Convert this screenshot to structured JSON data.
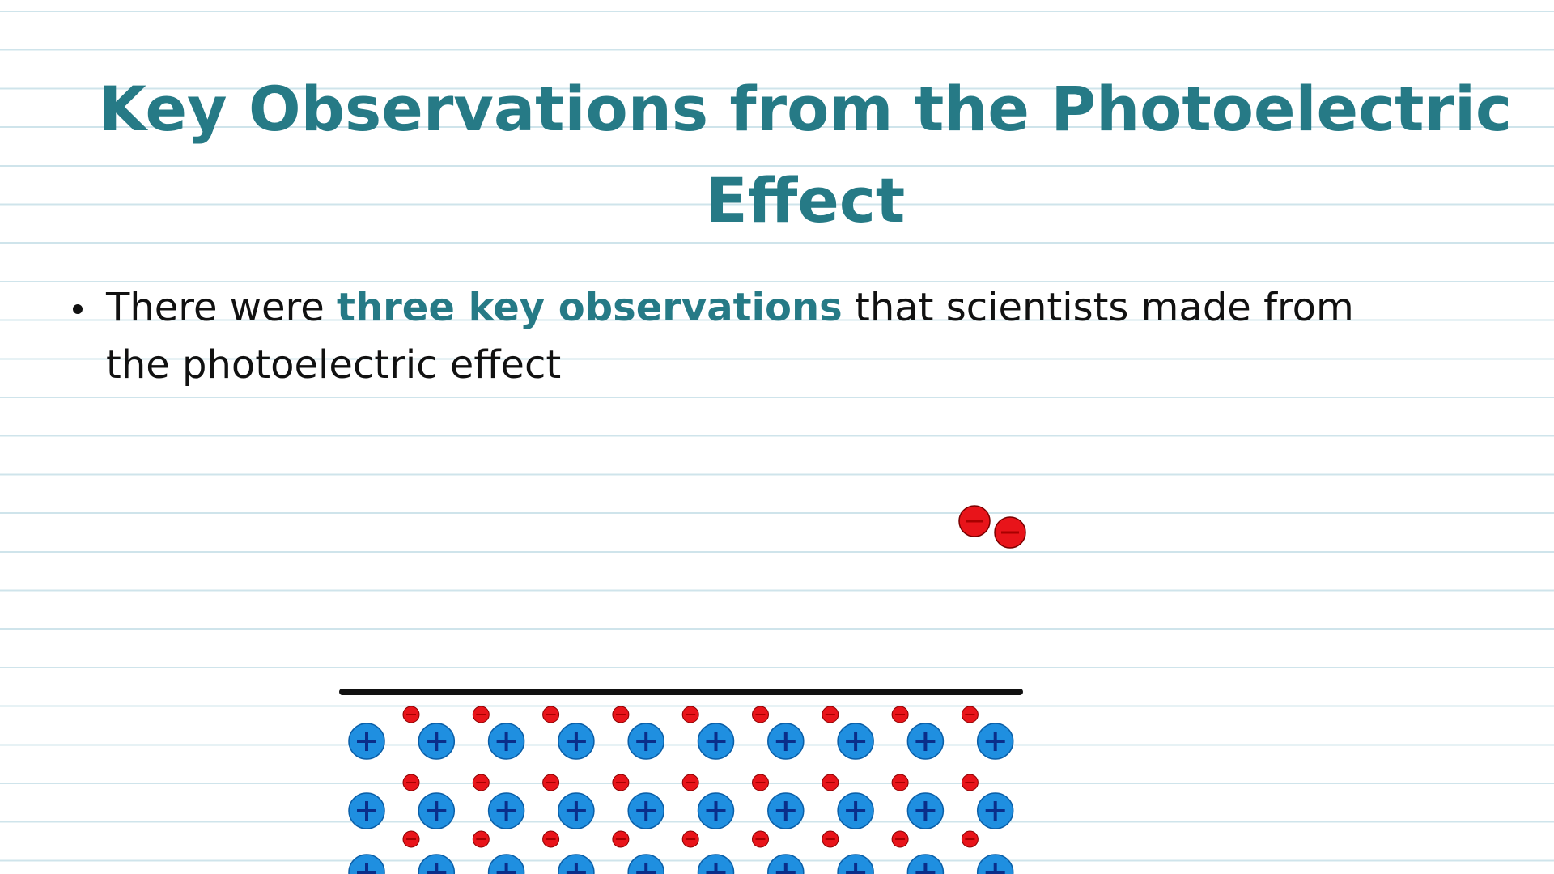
{
  "header": {
    "title": "Key Observations from the Photoelectric Effect"
  },
  "bullets": [
    {
      "before": "There were ",
      "highlight": "three key observations",
      "after": " that scientists made from the photoelectric effect"
    }
  ]
}
